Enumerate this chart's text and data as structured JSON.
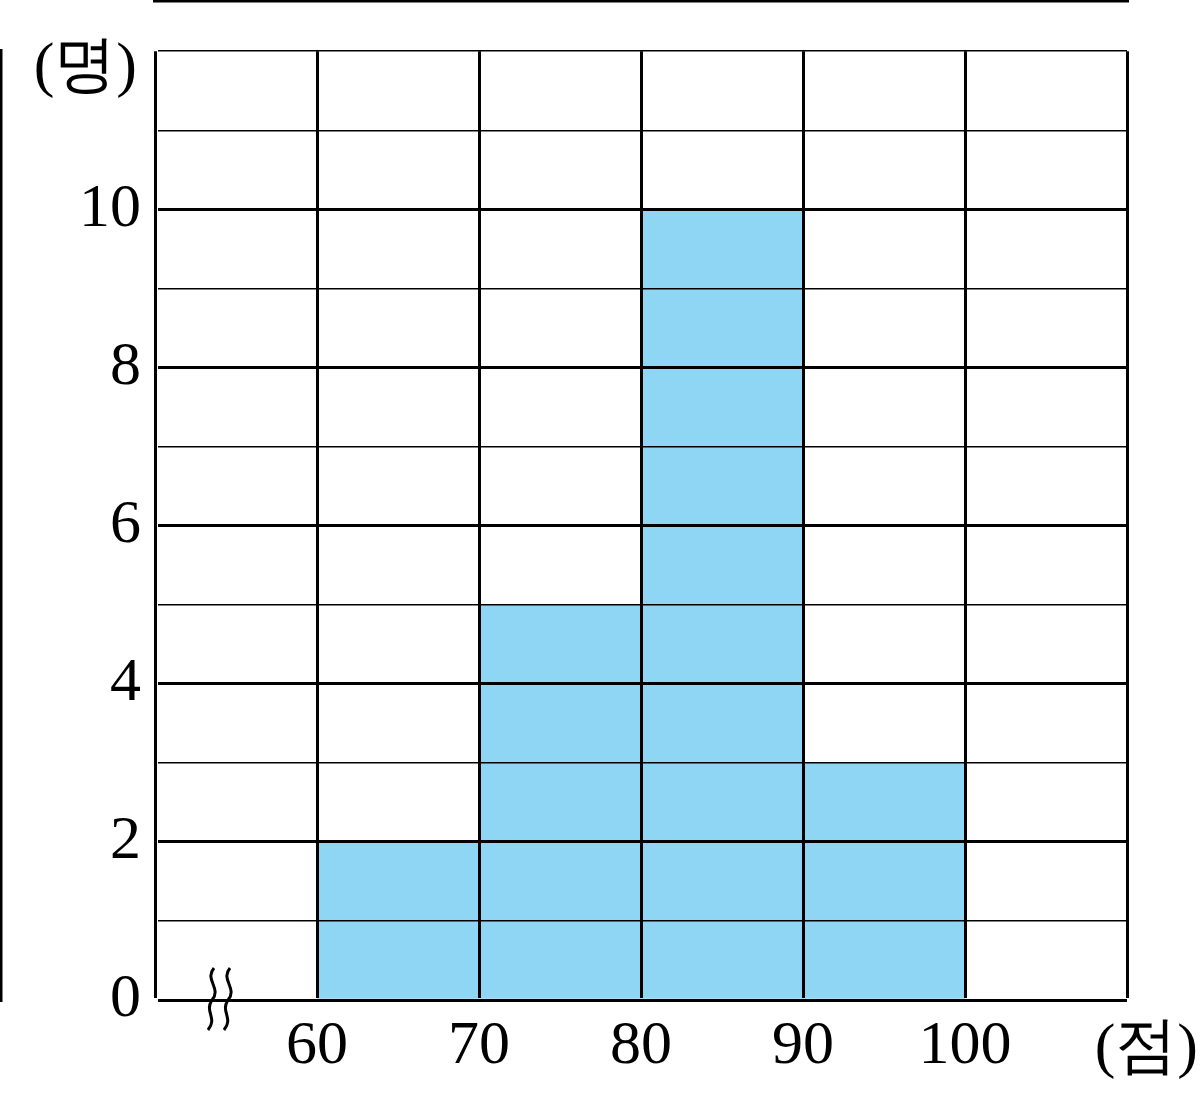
{
  "chart_data": {
    "type": "histogram",
    "bins": [
      60,
      70,
      80,
      90,
      100
    ],
    "values": [
      2,
      5,
      10,
      3
    ],
    "color": "#8fd6f5",
    "xlabel": "(점)",
    "ylabel": "(명)",
    "xlim": [
      50,
      110
    ],
    "xticks": [
      {
        "value": 50,
        "label": null
      },
      60,
      70,
      80,
      90,
      100,
      {
        "value": 110,
        "label": null
      }
    ],
    "ylim": [
      0,
      12
    ],
    "yticks": [
      0,
      {
        "value": 1,
        "label": null
      },
      2,
      {
        "value": 3,
        "label": null
      },
      4,
      {
        "value": 5,
        "label": null
      },
      6,
      {
        "value": 7,
        "label": null
      },
      8,
      {
        "value": 9,
        "label": null
      },
      10,
      {
        "value": 11,
        "label": null
      },
      {
        "value": 12,
        "label": null
      }
    ],
    "grid": true,
    "legend": false
  }
}
